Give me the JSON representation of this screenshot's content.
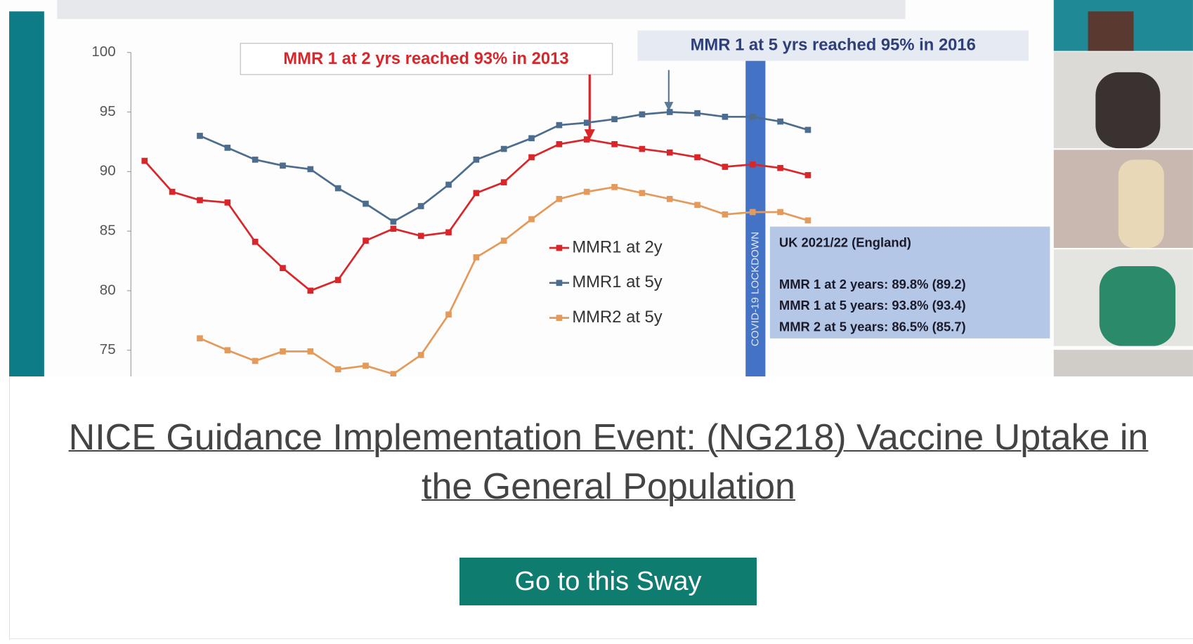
{
  "chart_data": {
    "type": "line",
    "categories": [
      null,
      null,
      null,
      null,
      null,
      null,
      null,
      null,
      null,
      null,
      null,
      null,
      null,
      null,
      null,
      null,
      null,
      null,
      null,
      null,
      null,
      null,
      null,
      null,
      null
    ],
    "series": [
      {
        "name": "MMR1 at 2y",
        "color": "#d9262a",
        "values": [
          90.9,
          88.3,
          87.6,
          87.4,
          84.1,
          81.9,
          80.0,
          80.9,
          84.2,
          85.2,
          84.6,
          84.9,
          88.2,
          89.1,
          91.2,
          92.3,
          92.7,
          92.3,
          91.9,
          91.6,
          91.2,
          90.4,
          90.6,
          90.3,
          89.7
        ]
      },
      {
        "name": "MMR1 at 5y",
        "color": "#4d6d8e",
        "values": [
          null,
          null,
          93.0,
          92.0,
          91.0,
          90.5,
          90.2,
          88.6,
          87.3,
          85.8,
          87.1,
          88.9,
          91.0,
          91.9,
          92.8,
          93.9,
          94.1,
          94.4,
          94.8,
          95.0,
          94.9,
          94.6,
          94.6,
          94.2,
          93.5
        ]
      },
      {
        "name": "MMR2 at 5y",
        "color": "#e39a5a",
        "values": [
          null,
          null,
          76.0,
          75.0,
          74.1,
          74.9,
          74.9,
          73.4,
          73.7,
          73.0,
          74.6,
          78.0,
          82.8,
          84.2,
          86.0,
          87.7,
          88.3,
          88.7,
          88.2,
          87.7,
          87.2,
          86.4,
          86.6,
          86.6,
          85.9
        ]
      }
    ],
    "ylim": [
      72.8,
      100
    ],
    "yticks": [
      75,
      80,
      85,
      90,
      95,
      100
    ],
    "grid": false,
    "annotations": [
      "MMR 1 at 2 yrs reached 93% in 2013",
      "MMR 1 at 5 yrs reached 95% in 2016"
    ],
    "lockdown_label": "COVID-19 LOCKDOWN",
    "info_box": {
      "title": "UK 2021/22 (England)",
      "lines": [
        "MMR 1 at 2 years: 89.8% (89.2)",
        "MMR 1 at 5 years: 93.8% (93.4)",
        "MMR 2 at 5 years: 86.5% (85.7)"
      ]
    }
  },
  "page": {
    "title": "NICE Guidance Implementation Event: (NG218) Vaccine Uptake in the General Population",
    "button": "Go to this Sway"
  }
}
